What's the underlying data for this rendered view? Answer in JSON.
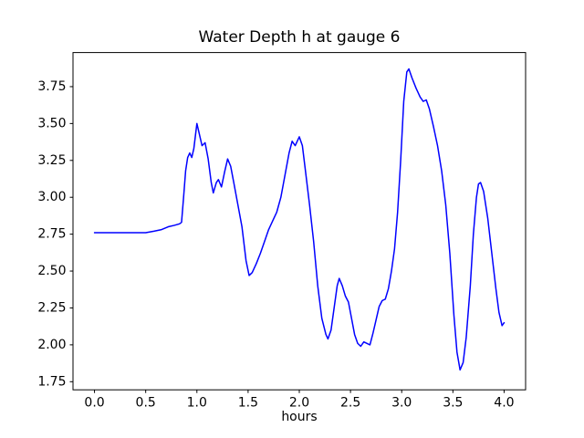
{
  "figure": {
    "background": "#ffffff",
    "frame_color": "#000000",
    "tick_color": "#000000",
    "text_color": "#000000"
  },
  "chart_data": {
    "type": "line",
    "title": "Water Depth h at gauge 6",
    "xlabel": "hours",
    "ylabel": "",
    "grid": false,
    "legend": false,
    "xlim": [
      -0.21,
      4.21
    ],
    "ylim": [
      1.695,
      3.981
    ],
    "xticks": {
      "values": [
        0.0,
        0.5,
        1.0,
        1.5,
        2.0,
        2.5,
        3.0,
        3.5,
        4.0
      ],
      "labels": [
        "0.0",
        "0.5",
        "1.0",
        "1.5",
        "2.0",
        "2.5",
        "3.0",
        "3.5",
        "4.0"
      ]
    },
    "yticks": {
      "values": [
        1.75,
        2.0,
        2.25,
        2.5,
        2.75,
        3.0,
        3.25,
        3.5,
        3.75
      ],
      "labels": [
        "1.75",
        "2.00",
        "2.25",
        "2.50",
        "2.75",
        "3.00",
        "3.25",
        "3.50",
        "3.75"
      ]
    },
    "series": [
      {
        "name": "water-depth-h-gauge-6",
        "color": "#0000ff",
        "line_width": 1.5,
        "x": [
          0.0,
          0.1,
          0.2,
          0.3,
          0.4,
          0.5,
          0.58,
          0.65,
          0.72,
          0.78,
          0.83,
          0.85,
          0.87,
          0.89,
          0.91,
          0.93,
          0.95,
          0.97,
          1.0,
          1.02,
          1.05,
          1.08,
          1.11,
          1.14,
          1.16,
          1.19,
          1.21,
          1.24,
          1.27,
          1.3,
          1.33,
          1.36,
          1.4,
          1.44,
          1.48,
          1.51,
          1.54,
          1.58,
          1.62,
          1.66,
          1.7,
          1.74,
          1.78,
          1.82,
          1.86,
          1.9,
          1.93,
          1.96,
          2.0,
          2.03,
          2.06,
          2.1,
          2.14,
          2.18,
          2.22,
          2.26,
          2.28,
          2.31,
          2.34,
          2.37,
          2.39,
          2.42,
          2.45,
          2.48,
          2.51,
          2.54,
          2.57,
          2.6,
          2.63,
          2.66,
          2.69,
          2.72,
          2.75,
          2.78,
          2.81,
          2.84,
          2.87,
          2.9,
          2.93,
          2.96,
          2.99,
          3.02,
          3.05,
          3.07,
          3.1,
          3.14,
          3.18,
          3.21,
          3.24,
          3.27,
          3.31,
          3.35,
          3.39,
          3.43,
          3.47,
          3.51,
          3.54,
          3.57,
          3.6,
          3.63,
          3.67,
          3.7,
          3.73,
          3.75,
          3.77,
          3.8,
          3.84,
          3.88,
          3.92,
          3.95,
          3.98,
          4.0
        ],
        "y": [
          2.76,
          2.76,
          2.76,
          2.76,
          2.76,
          2.76,
          2.77,
          2.78,
          2.8,
          2.81,
          2.82,
          2.83,
          3.0,
          3.18,
          3.27,
          3.3,
          3.27,
          3.33,
          3.5,
          3.44,
          3.35,
          3.37,
          3.26,
          3.1,
          3.03,
          3.1,
          3.12,
          3.07,
          3.17,
          3.26,
          3.21,
          3.1,
          2.95,
          2.8,
          2.57,
          2.47,
          2.49,
          2.55,
          2.62,
          2.7,
          2.78,
          2.84,
          2.9,
          3.0,
          3.15,
          3.3,
          3.38,
          3.35,
          3.41,
          3.35,
          3.18,
          2.95,
          2.7,
          2.4,
          2.18,
          2.07,
          2.04,
          2.1,
          2.25,
          2.4,
          2.45,
          2.4,
          2.33,
          2.29,
          2.18,
          2.07,
          2.01,
          1.99,
          2.02,
          2.01,
          2.0,
          2.08,
          2.17,
          2.26,
          2.3,
          2.31,
          2.38,
          2.5,
          2.65,
          2.9,
          3.25,
          3.65,
          3.85,
          3.87,
          3.81,
          3.74,
          3.68,
          3.65,
          3.66,
          3.6,
          3.48,
          3.35,
          3.18,
          2.95,
          2.62,
          2.2,
          1.95,
          1.83,
          1.88,
          2.05,
          2.4,
          2.75,
          3.0,
          3.09,
          3.1,
          3.04,
          2.86,
          2.62,
          2.38,
          2.22,
          2.13,
          2.15
        ]
      }
    ]
  }
}
